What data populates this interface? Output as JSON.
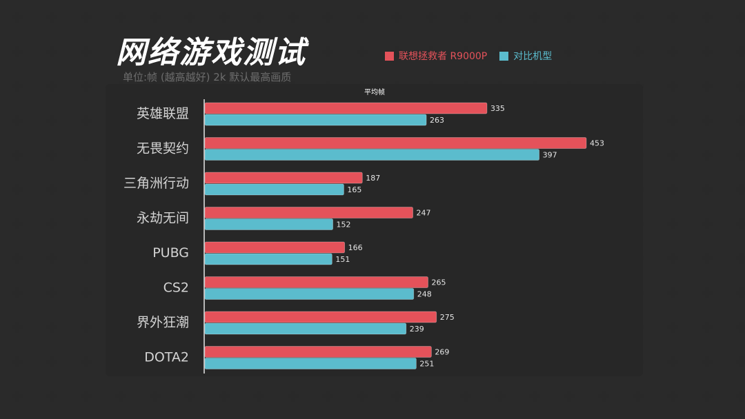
{
  "header": {
    "title": "网络游戏测试",
    "subtitle": "单位:帧 (越高越好)   2k 默认最高画质"
  },
  "colors": {
    "series_a": "#e4525a",
    "series_b": "#5bbccd",
    "background": "#1c1c1c",
    "panel": "#272727"
  },
  "chart_data": {
    "type": "bar",
    "orientation": "horizontal",
    "title": "平均帧",
    "categories": [
      "英雄联盟",
      "无畏契约",
      "三角洲行动",
      "永劫无间",
      "PUBG",
      "CS2",
      "界外狂潮",
      "DOTA2"
    ],
    "series": [
      {
        "name": "联想拯救者 R9000P",
        "values": [
          335,
          453,
          187,
          247,
          166,
          265,
          275,
          269
        ]
      },
      {
        "name": "对比机型",
        "values": [
          263,
          397,
          165,
          152,
          151,
          248,
          239,
          251
        ]
      }
    ],
    "xlim": [
      0,
      460
    ],
    "grid": false,
    "legend": "top-right"
  }
}
